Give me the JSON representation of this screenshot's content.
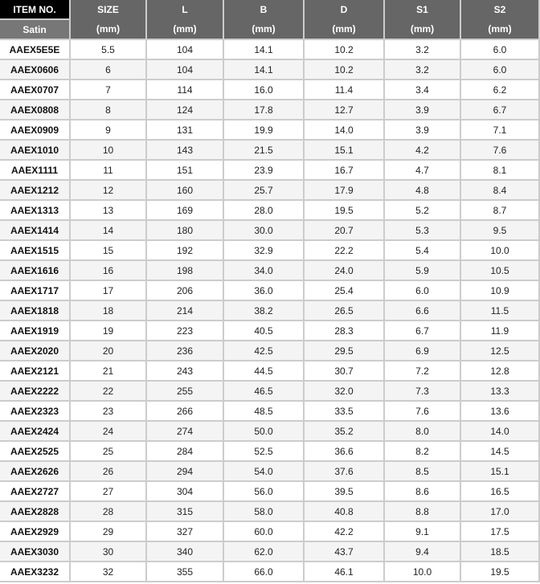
{
  "header": {
    "item": "ITEM NO.",
    "finish": "Satin",
    "columns": [
      {
        "name": "SIZE",
        "unit": "(mm)"
      },
      {
        "name": "L",
        "unit": "(mm)"
      },
      {
        "name": "B",
        "unit": "(mm)"
      },
      {
        "name": "D",
        "unit": "(mm)"
      },
      {
        "name": "S1",
        "unit": "(mm)"
      },
      {
        "name": "S2",
        "unit": "(mm)"
      }
    ]
  },
  "rows": [
    [
      "AAEX5E5E",
      "5.5",
      "104",
      "14.1",
      "10.2",
      "3.2",
      "6.0"
    ],
    [
      "AAEX0606",
      "6",
      "104",
      "14.1",
      "10.2",
      "3.2",
      "6.0"
    ],
    [
      "AAEX0707",
      "7",
      "114",
      "16.0",
      "11.4",
      "3.4",
      "6.2"
    ],
    [
      "AAEX0808",
      "8",
      "124",
      "17.8",
      "12.7",
      "3.9",
      "6.7"
    ],
    [
      "AAEX0909",
      "9",
      "131",
      "19.9",
      "14.0",
      "3.9",
      "7.1"
    ],
    [
      "AAEX1010",
      "10",
      "143",
      "21.5",
      "15.1",
      "4.2",
      "7.6"
    ],
    [
      "AAEX1111",
      "11",
      "151",
      "23.9",
      "16.7",
      "4.7",
      "8.1"
    ],
    [
      "AAEX1212",
      "12",
      "160",
      "25.7",
      "17.9",
      "4.8",
      "8.4"
    ],
    [
      "AAEX1313",
      "13",
      "169",
      "28.0",
      "19.5",
      "5.2",
      "8.7"
    ],
    [
      "AAEX1414",
      "14",
      "180",
      "30.0",
      "20.7",
      "5.3",
      "9.5"
    ],
    [
      "AAEX1515",
      "15",
      "192",
      "32.9",
      "22.2",
      "5.4",
      "10.0"
    ],
    [
      "AAEX1616",
      "16",
      "198",
      "34.0",
      "24.0",
      "5.9",
      "10.5"
    ],
    [
      "AAEX1717",
      "17",
      "206",
      "36.0",
      "25.4",
      "6.0",
      "10.9"
    ],
    [
      "AAEX1818",
      "18",
      "214",
      "38.2",
      "26.5",
      "6.6",
      "11.5"
    ],
    [
      "AAEX1919",
      "19",
      "223",
      "40.5",
      "28.3",
      "6.7",
      "11.9"
    ],
    [
      "AAEX2020",
      "20",
      "236",
      "42.5",
      "29.5",
      "6.9",
      "12.5"
    ],
    [
      "AAEX2121",
      "21",
      "243",
      "44.5",
      "30.7",
      "7.2",
      "12.8"
    ],
    [
      "AAEX2222",
      "22",
      "255",
      "46.5",
      "32.0",
      "7.3",
      "13.3"
    ],
    [
      "AAEX2323",
      "23",
      "266",
      "48.5",
      "33.5",
      "7.6",
      "13.6"
    ],
    [
      "AAEX2424",
      "24",
      "274",
      "50.0",
      "35.2",
      "8.0",
      "14.0"
    ],
    [
      "AAEX2525",
      "25",
      "284",
      "52.5",
      "36.6",
      "8.2",
      "14.5"
    ],
    [
      "AAEX2626",
      "26",
      "294",
      "54.0",
      "37.6",
      "8.5",
      "15.1"
    ],
    [
      "AAEX2727",
      "27",
      "304",
      "56.0",
      "39.5",
      "8.6",
      "16.5"
    ],
    [
      "AAEX2828",
      "28",
      "315",
      "58.0",
      "40.8",
      "8.8",
      "17.0"
    ],
    [
      "AAEX2929",
      "29",
      "327",
      "60.0",
      "42.2",
      "9.1",
      "17.5"
    ],
    [
      "AAEX3030",
      "30",
      "340",
      "62.0",
      "43.7",
      "9.4",
      "18.5"
    ],
    [
      "AAEX3232",
      "32",
      "355",
      "66.0",
      "46.1",
      "10.0",
      "19.5"
    ]
  ]
}
